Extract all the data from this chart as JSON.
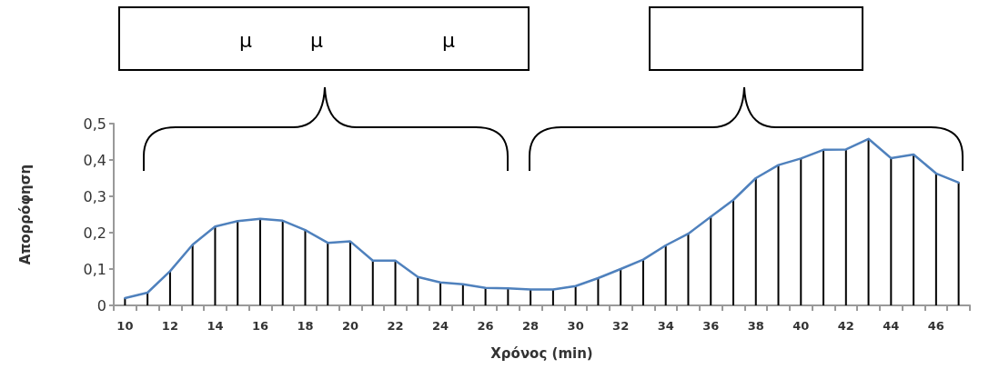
{
  "chart_data": {
    "type": "line",
    "xlabel": "Χρόνος (min)",
    "ylabel": "Απορρόφηση",
    "categories": [
      "10",
      null,
      "12",
      null,
      "14",
      null,
      "16",
      null,
      "18",
      null,
      "20",
      null,
      "22",
      null,
      "24",
      null,
      "26",
      null,
      "28",
      null,
      "30",
      null,
      "32",
      null,
      "34",
      null,
      "36",
      null,
      "38",
      null,
      "40",
      null,
      "42",
      null,
      "44",
      null,
      "46",
      null
    ],
    "series": [
      {
        "type": "bar",
        "color": "#000000",
        "values": [
          0.02,
          0.035,
          0.094,
          0.167,
          0.217,
          0.232,
          0.238,
          0.233,
          0.207,
          0.172,
          0.176,
          0.123,
          0.123,
          0.078,
          0.063,
          0.058,
          0.048,
          0.047,
          0.044,
          0.044,
          0.053,
          0.075,
          0.1,
          0.126,
          0.165,
          0.197,
          0.244,
          0.29,
          0.35,
          0.386,
          0.404,
          0.428,
          0.429,
          0.458,
          0.405,
          0.415,
          0.363,
          0.338
        ]
      },
      {
        "color": "#4f81bd",
        "values": [
          0.02,
          0.035,
          0.094,
          0.167,
          0.217,
          0.232,
          0.238,
          0.233,
          0.207,
          0.172,
          0.176,
          0.123,
          0.123,
          0.078,
          0.063,
          0.058,
          0.048,
          0.047,
          0.044,
          0.044,
          0.053,
          0.075,
          0.1,
          0.126,
          0.165,
          0.197,
          0.244,
          0.29,
          0.35,
          0.386,
          0.404,
          0.428,
          0.429,
          0.458,
          0.405,
          0.415,
          0.363,
          0.338
        ]
      }
    ],
    "ylim": [
      0,
      0.5
    ],
    "yticks": [
      0,
      {
        "value": 0.1,
        "label": "0,1"
      },
      {
        "value": 0.2,
        "label": "0,2"
      },
      {
        "value": 0.3,
        "label": "0,3"
      },
      {
        "value": 0.4,
        "label": "0,4"
      },
      {
        "value": 0.5,
        "label": "0,5"
      }
    ],
    "grid": false,
    "marker": "none",
    "line_style": "solid",
    "annotations": [
      "μ",
      "μ",
      "μ"
    ]
  }
}
